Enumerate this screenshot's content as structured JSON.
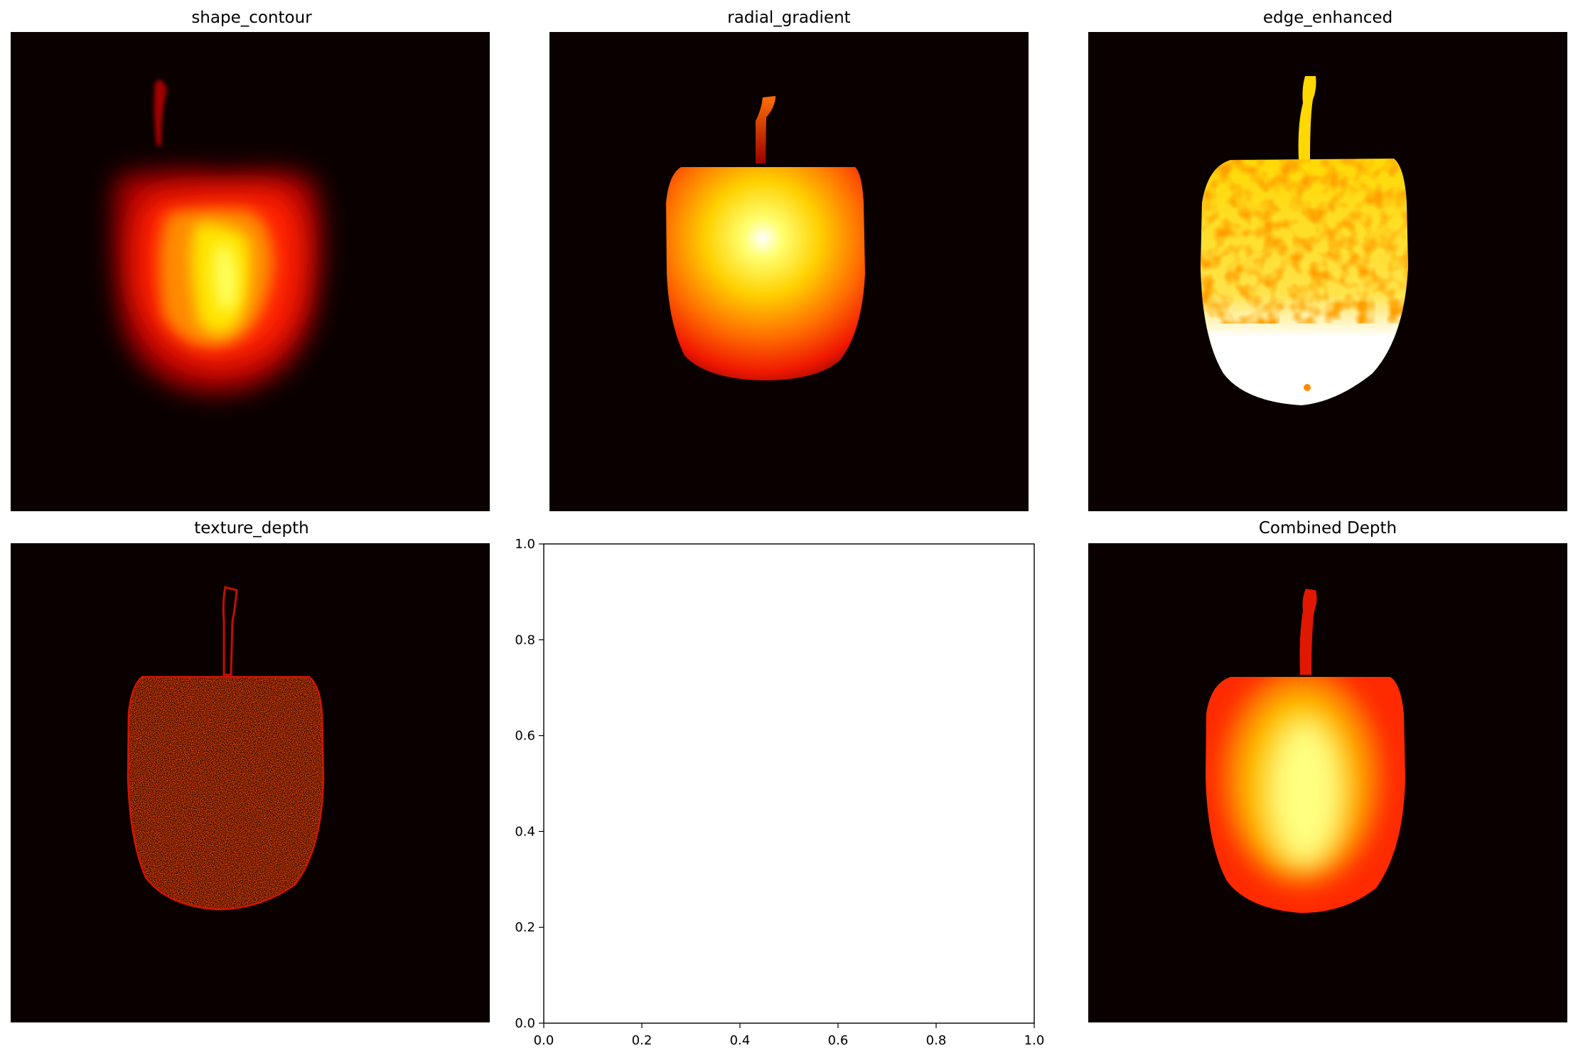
{
  "figure": {
    "panels": [
      {
        "title": "shape_contour",
        "kind": "heatmap-image"
      },
      {
        "title": "radial_gradient",
        "kind": "heatmap-image"
      },
      {
        "title": "edge_enhanced",
        "kind": "heatmap-image"
      },
      {
        "title": "texture_depth",
        "kind": "heatmap-image"
      },
      {
        "title": "",
        "kind": "empty-axes"
      },
      {
        "title": "Combined Depth",
        "kind": "heatmap-image"
      }
    ],
    "colormap": [
      "#0a0000",
      "#b00000",
      "#ff2a00",
      "#ff8c00",
      "#ffe600",
      "#ffffff"
    ]
  },
  "chart_data": [
    {
      "type": "heatmap",
      "title": "shape_contour",
      "colormap": "hot",
      "grid": false,
      "axes_visible": false
    },
    {
      "type": "heatmap",
      "title": "radial_gradient",
      "colormap": "hot",
      "grid": false,
      "axes_visible": false
    },
    {
      "type": "heatmap",
      "title": "edge_enhanced",
      "colormap": "hot",
      "grid": false,
      "axes_visible": false
    },
    {
      "type": "heatmap",
      "title": "texture_depth",
      "colormap": "hot",
      "grid": false,
      "axes_visible": false
    },
    {
      "type": "scatter",
      "title": "",
      "x": [],
      "y": [],
      "xlim": [
        0.0,
        1.0
      ],
      "ylim": [
        0.0,
        1.0
      ],
      "xticks": [
        "0.0",
        "0.2",
        "0.4",
        "0.6",
        "0.8",
        "1.0"
      ],
      "yticks": [
        "0.0",
        "0.2",
        "0.4",
        "0.6",
        "0.8",
        "1.0"
      ],
      "grid": false
    },
    {
      "type": "heatmap",
      "title": "Combined Depth",
      "colormap": "hot",
      "grid": false,
      "axes_visible": false
    }
  ]
}
